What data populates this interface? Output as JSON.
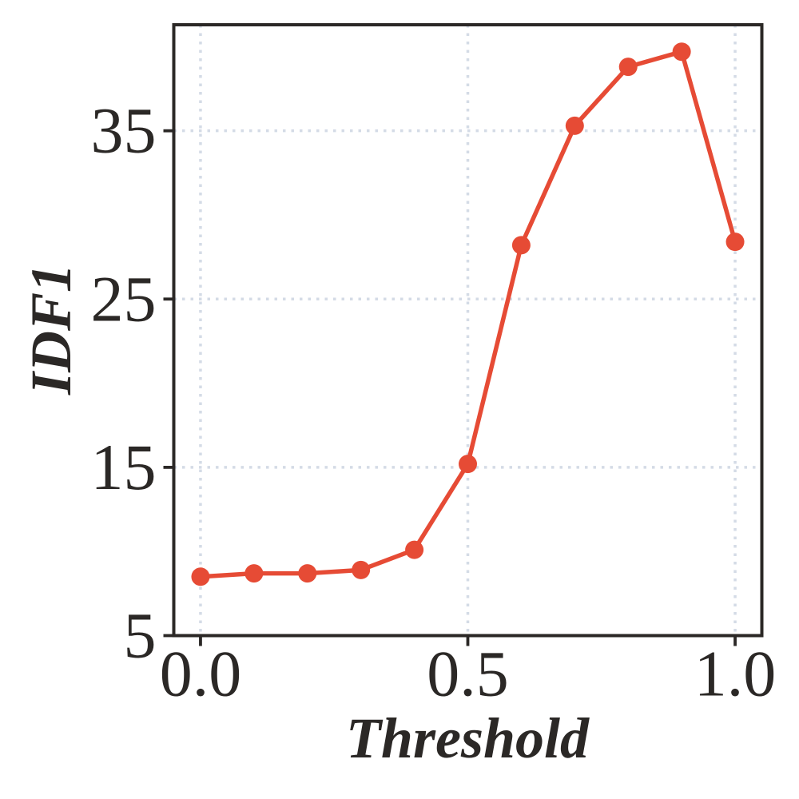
{
  "figure": {
    "background": "#ffffff"
  },
  "chart_data": {
    "type": "line",
    "title": "",
    "xlabel": "Threshold",
    "ylabel": "IDF1",
    "x": [
      0.0,
      0.1,
      0.2,
      0.3,
      0.4,
      0.5,
      0.6,
      0.7,
      0.8,
      0.9,
      1.0
    ],
    "values": [
      8.5,
      8.7,
      8.7,
      8.9,
      10.1,
      15.2,
      28.2,
      35.3,
      38.8,
      39.7,
      28.4
    ],
    "series_name": "IDF1",
    "xlim": [
      -0.05,
      1.05
    ],
    "ylim": [
      5,
      41.3
    ],
    "xticks": {
      "values": [
        0.0,
        0.5,
        1.0
      ],
      "labels": [
        "0.0",
        "0.5",
        "1.0"
      ]
    },
    "yticks": {
      "values": [
        5,
        15,
        25,
        35
      ],
      "labels": [
        "5",
        "15",
        "25",
        "35"
      ]
    },
    "grid": {
      "visible": true,
      "style": "dotted",
      "color": "#d4dbe6"
    },
    "legend": {
      "visible": false
    },
    "colors": {
      "line": "#e64b35",
      "marker": "#e64b35",
      "spine": "#2b2826",
      "tick": "#2b2826",
      "text": "#2b2826"
    },
    "marker": "circle"
  }
}
